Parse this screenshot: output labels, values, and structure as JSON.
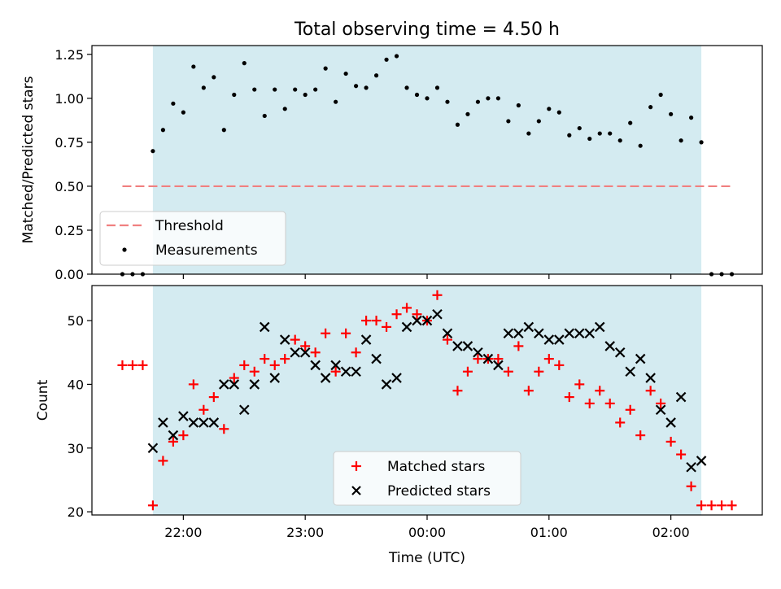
{
  "chart_data": [
    {
      "type": "scatter",
      "title": "Total observing time = 4.50 h",
      "ylabel": "Matched/Predicted stars",
      "xlim": [
        "21:15",
        "02:45"
      ],
      "ylim": [
        0,
        1.3
      ],
      "yticks": [
        "0.00",
        "0.25",
        "0.50",
        "0.75",
        "1.00",
        "1.25"
      ],
      "ytick_values": [
        0,
        0.25,
        0.5,
        0.75,
        1.0,
        1.25
      ],
      "shaded_span": [
        "21:45",
        "02:15"
      ],
      "shade_color": "#d4ebf1",
      "grid": false,
      "legend_position": "lower-left",
      "threshold": {
        "name": "Threshold",
        "value": 0.5,
        "x_start": "21:30",
        "x_end": "02:30",
        "color": "#f08080"
      },
      "series": [
        {
          "name": "Measurements",
          "color": "#000000",
          "x": [
            "21:30",
            "21:35",
            "21:40",
            "21:45",
            "21:50",
            "21:55",
            "22:00",
            "22:05",
            "22:10",
            "22:15",
            "22:20",
            "22:25",
            "22:30",
            "22:35",
            "22:40",
            "22:45",
            "22:50",
            "22:55",
            "23:00",
            "23:05",
            "23:10",
            "23:15",
            "23:20",
            "23:25",
            "23:30",
            "23:35",
            "23:40",
            "23:45",
            "23:50",
            "23:55",
            "00:00",
            "00:05",
            "00:10",
            "00:15",
            "00:20",
            "00:25",
            "00:30",
            "00:35",
            "00:40",
            "00:45",
            "00:50",
            "00:55",
            "01:00",
            "01:05",
            "01:10",
            "01:15",
            "01:20",
            "01:25",
            "01:30",
            "01:35",
            "01:40",
            "01:45",
            "01:50",
            "01:55",
            "02:00",
            "02:05",
            "02:10",
            "02:15",
            "02:20",
            "02:25",
            "02:30"
          ],
          "y": [
            0,
            0,
            0,
            0.7,
            0.82,
            0.97,
            0.92,
            1.18,
            1.06,
            1.12,
            0.82,
            1.02,
            1.2,
            1.05,
            0.9,
            1.05,
            0.94,
            1.05,
            1.02,
            1.05,
            1.17,
            0.98,
            1.14,
            1.07,
            1.06,
            1.13,
            1.22,
            1.24,
            1.06,
            1.02,
            1.0,
            1.06,
            0.98,
            0.85,
            0.91,
            0.98,
            1.0,
            1.0,
            0.87,
            0.96,
            0.8,
            0.87,
            0.94,
            0.92,
            0.79,
            0.83,
            0.77,
            0.8,
            0.8,
            0.76,
            0.86,
            0.73,
            0.95,
            1.02,
            0.91,
            0.76,
            0.89,
            0.75,
            0,
            0,
            0
          ]
        }
      ]
    },
    {
      "type": "scatter",
      "xlabel": "Time (UTC)",
      "ylabel": "Count",
      "xlim": [
        "21:15",
        "02:45"
      ],
      "ylim": [
        19.5,
        55.5
      ],
      "yticks": [
        "20",
        "30",
        "40",
        "50"
      ],
      "ytick_values": [
        20,
        30,
        40,
        50
      ],
      "xticks": [
        "22:00",
        "23:00",
        "00:00",
        "01:00",
        "02:00"
      ],
      "shaded_span": [
        "21:45",
        "02:15"
      ],
      "shade_color": "#d4ebf1",
      "grid": false,
      "legend_position": "lower-center",
      "series": [
        {
          "name": "Matched stars",
          "marker": "plus",
          "color": "#ff0000",
          "x": [
            "21:30",
            "21:35",
            "21:40",
            "21:45",
            "21:50",
            "21:55",
            "22:00",
            "22:05",
            "22:10",
            "22:15",
            "22:20",
            "22:25",
            "22:30",
            "22:35",
            "22:40",
            "22:45",
            "22:50",
            "22:55",
            "23:00",
            "23:05",
            "23:10",
            "23:15",
            "23:20",
            "23:25",
            "23:30",
            "23:35",
            "23:40",
            "23:45",
            "23:50",
            "23:55",
            "00:00",
            "00:05",
            "00:10",
            "00:15",
            "00:20",
            "00:25",
            "00:30",
            "00:35",
            "00:40",
            "00:45",
            "00:50",
            "00:55",
            "01:00",
            "01:05",
            "01:10",
            "01:15",
            "01:20",
            "01:25",
            "01:30",
            "01:35",
            "01:40",
            "01:45",
            "01:50",
            "01:55",
            "02:00",
            "02:05",
            "02:10",
            "02:15",
            "02:20",
            "02:25",
            "02:30"
          ],
          "y": [
            43,
            43,
            43,
            21,
            28,
            31,
            32,
            40,
            36,
            38,
            33,
            41,
            43,
            42,
            44,
            43,
            44,
            47,
            46,
            45,
            48,
            42,
            48,
            45,
            50,
            50,
            49,
            51,
            52,
            51,
            50,
            54,
            47,
            39,
            42,
            44,
            44,
            44,
            42,
            46,
            39,
            42,
            44,
            43,
            38,
            40,
            37,
            39,
            37,
            34,
            36,
            32,
            39,
            37,
            31,
            29,
            24,
            21,
            21,
            21,
            21
          ]
        },
        {
          "name": "Predicted stars",
          "marker": "x",
          "color": "#000000",
          "x": [
            "21:45",
            "21:50",
            "21:55",
            "22:00",
            "22:05",
            "22:10",
            "22:15",
            "22:20",
            "22:25",
            "22:30",
            "22:35",
            "22:40",
            "22:45",
            "22:50",
            "22:55",
            "23:00",
            "23:05",
            "23:10",
            "23:15",
            "23:20",
            "23:25",
            "23:30",
            "23:35",
            "23:40",
            "23:45",
            "23:50",
            "23:55",
            "00:00",
            "00:05",
            "00:10",
            "00:15",
            "00:20",
            "00:25",
            "00:30",
            "00:35",
            "00:40",
            "00:45",
            "00:50",
            "00:55",
            "01:00",
            "01:05",
            "01:10",
            "01:15",
            "01:20",
            "01:25",
            "01:30",
            "01:35",
            "01:40",
            "01:45",
            "01:50",
            "01:55",
            "02:00",
            "02:05",
            "02:10",
            "02:15"
          ],
          "y": [
            30,
            34,
            32,
            35,
            34,
            34,
            34,
            40,
            40,
            36,
            40,
            49,
            41,
            47,
            45,
            45,
            43,
            41,
            43,
            42,
            42,
            47,
            44,
            40,
            41,
            49,
            50,
            50,
            51,
            48,
            46,
            46,
            45,
            44,
            43,
            48,
            48,
            49,
            48,
            47,
            47,
            48,
            48,
            48,
            49,
            46,
            45,
            42,
            44,
            41,
            36,
            34,
            38,
            27,
            28
          ]
        }
      ]
    }
  ]
}
